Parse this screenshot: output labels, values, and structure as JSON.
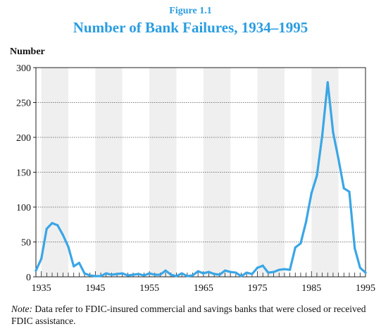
{
  "header": {
    "figure_label": "Figure 1.1",
    "title": "Number of Bank Failures, 1934–1995"
  },
  "note": {
    "prefix": "Note:",
    "text": "Data refer to FDIC-insured commercial and savings banks that were closed or received FDIC assistance."
  },
  "colors": {
    "title": "#2a9de0",
    "line": "#3aa6e6",
    "band": "#efefef",
    "grid": "#555555"
  },
  "chart_data": {
    "type": "line",
    "ylabel": "Number",
    "xlabel": "",
    "ylim": [
      0,
      300
    ],
    "xlim": [
      1934,
      1995
    ],
    "grid": "horizontal-dotted",
    "shaded_bands": [
      [
        1935,
        1940
      ],
      [
        1945,
        1950
      ],
      [
        1955,
        1960
      ],
      [
        1965,
        1970
      ],
      [
        1975,
        1980
      ],
      [
        1985,
        1990
      ]
    ],
    "x_ticks": [
      1935,
      1945,
      1955,
      1965,
      1975,
      1985,
      1995
    ],
    "y_ticks": [
      0,
      50,
      100,
      150,
      200,
      250,
      300
    ],
    "series": [
      {
        "x": [
          1934,
          1935,
          1936,
          1937,
          1938,
          1939,
          1940,
          1941,
          1942,
          1943,
          1944,
          1945,
          1946,
          1947,
          1948,
          1949,
          1950,
          1951,
          1952,
          1953,
          1954,
          1955,
          1956,
          1957,
          1958,
          1959,
          1960,
          1961,
          1962,
          1963,
          1964,
          1965,
          1966,
          1967,
          1968,
          1969,
          1970,
          1971,
          1972,
          1973,
          1974,
          1975,
          1976,
          1977,
          1978,
          1979,
          1980,
          1981,
          1982,
          1983,
          1984,
          1985,
          1986,
          1987,
          1988,
          1989,
          1990,
          1991,
          1992,
          1993,
          1994,
          1995
        ],
        "values": [
          9,
          26,
          69,
          77,
          74,
          60,
          43,
          15,
          20,
          5,
          2,
          1,
          1,
          5,
          3,
          4,
          5,
          2,
          3,
          4,
          2,
          5,
          3,
          3,
          9,
          3,
          1,
          5,
          1,
          2,
          8,
          5,
          7,
          4,
          3,
          9,
          7,
          6,
          1,
          6,
          4,
          13,
          16,
          6,
          7,
          10,
          11,
          10,
          42,
          48,
          79,
          120,
          145,
          203,
          279,
          207,
          169,
          127,
          122,
          41,
          13,
          6
        ]
      }
    ]
  }
}
